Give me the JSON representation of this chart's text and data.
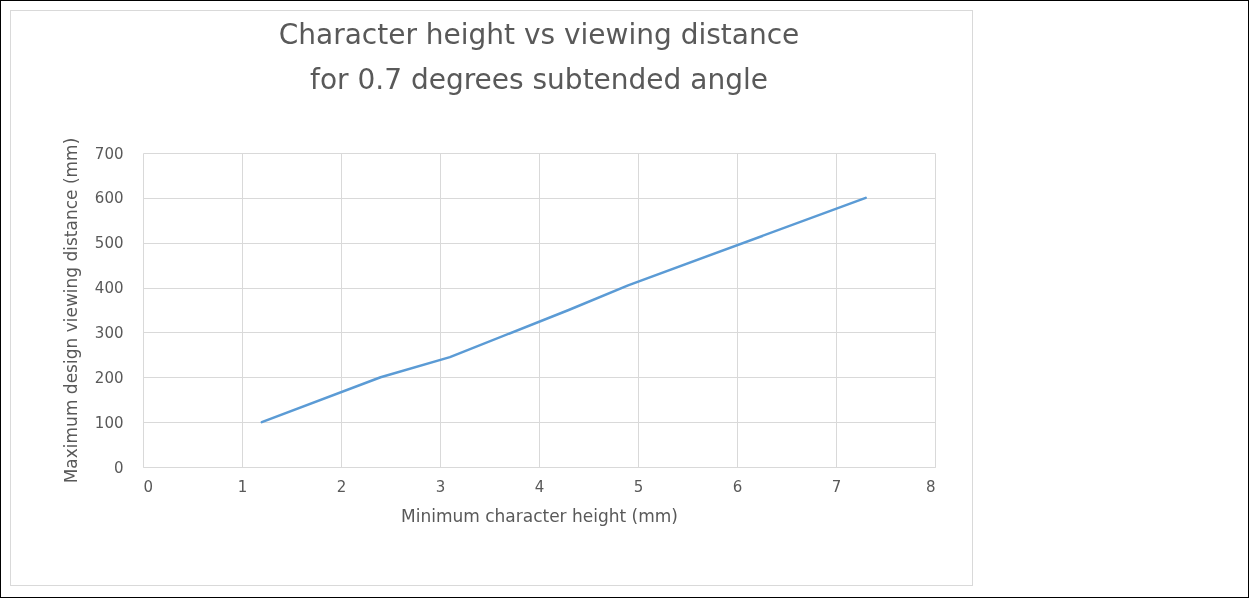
{
  "chart_data": {
    "type": "line",
    "title": "Character height vs viewing distance\nfor 0.7 degrees subtended angle",
    "xlabel": "Minimum character height (mm)",
    "ylabel": "Maximum design viewing distance (mm)",
    "x": [
      1.2,
      2.4,
      3.1,
      4.3,
      4.9,
      7.3
    ],
    "series": [
      {
        "color": "#5b9bd5",
        "values": [
          100,
          200,
          245,
          350,
          405,
          600
        ]
      }
    ],
    "xlim": [
      0,
      8
    ],
    "xticks": [
      0,
      1,
      2,
      3,
      4,
      5,
      6,
      7,
      8
    ],
    "ylim": [
      0,
      700
    ],
    "yticks": [
      0,
      100,
      200,
      300,
      400,
      500,
      600,
      700
    ],
    "grid": true,
    "legend": false,
    "marker": "none",
    "line_style": "solid"
  }
}
